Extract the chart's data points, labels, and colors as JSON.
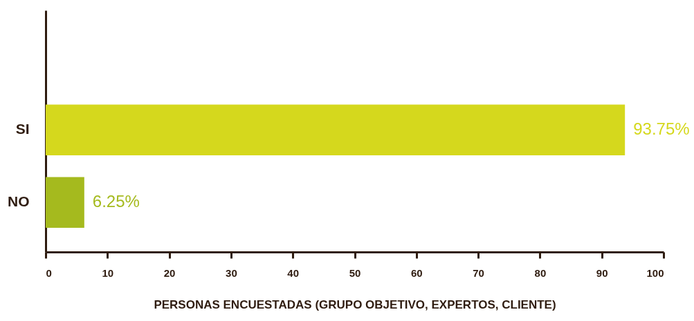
{
  "chart_data": {
    "type": "bar",
    "orientation": "horizontal",
    "categories": [
      "SI",
      "NO"
    ],
    "values": [
      93.75,
      6.25
    ],
    "colors": [
      "#d5d81d",
      "#a5ba1e"
    ],
    "value_labels": [
      "93.75%",
      "6.25%"
    ],
    "xlabel": "PERSONAS ENCUESTADAS (GRUPO OBJETIVO, EXPERTOS, CLIENTE)",
    "xlim": [
      0,
      100
    ],
    "xticks": [
      0,
      10,
      20,
      30,
      40,
      50,
      60,
      70,
      80,
      90,
      100
    ],
    "grid": false
  }
}
